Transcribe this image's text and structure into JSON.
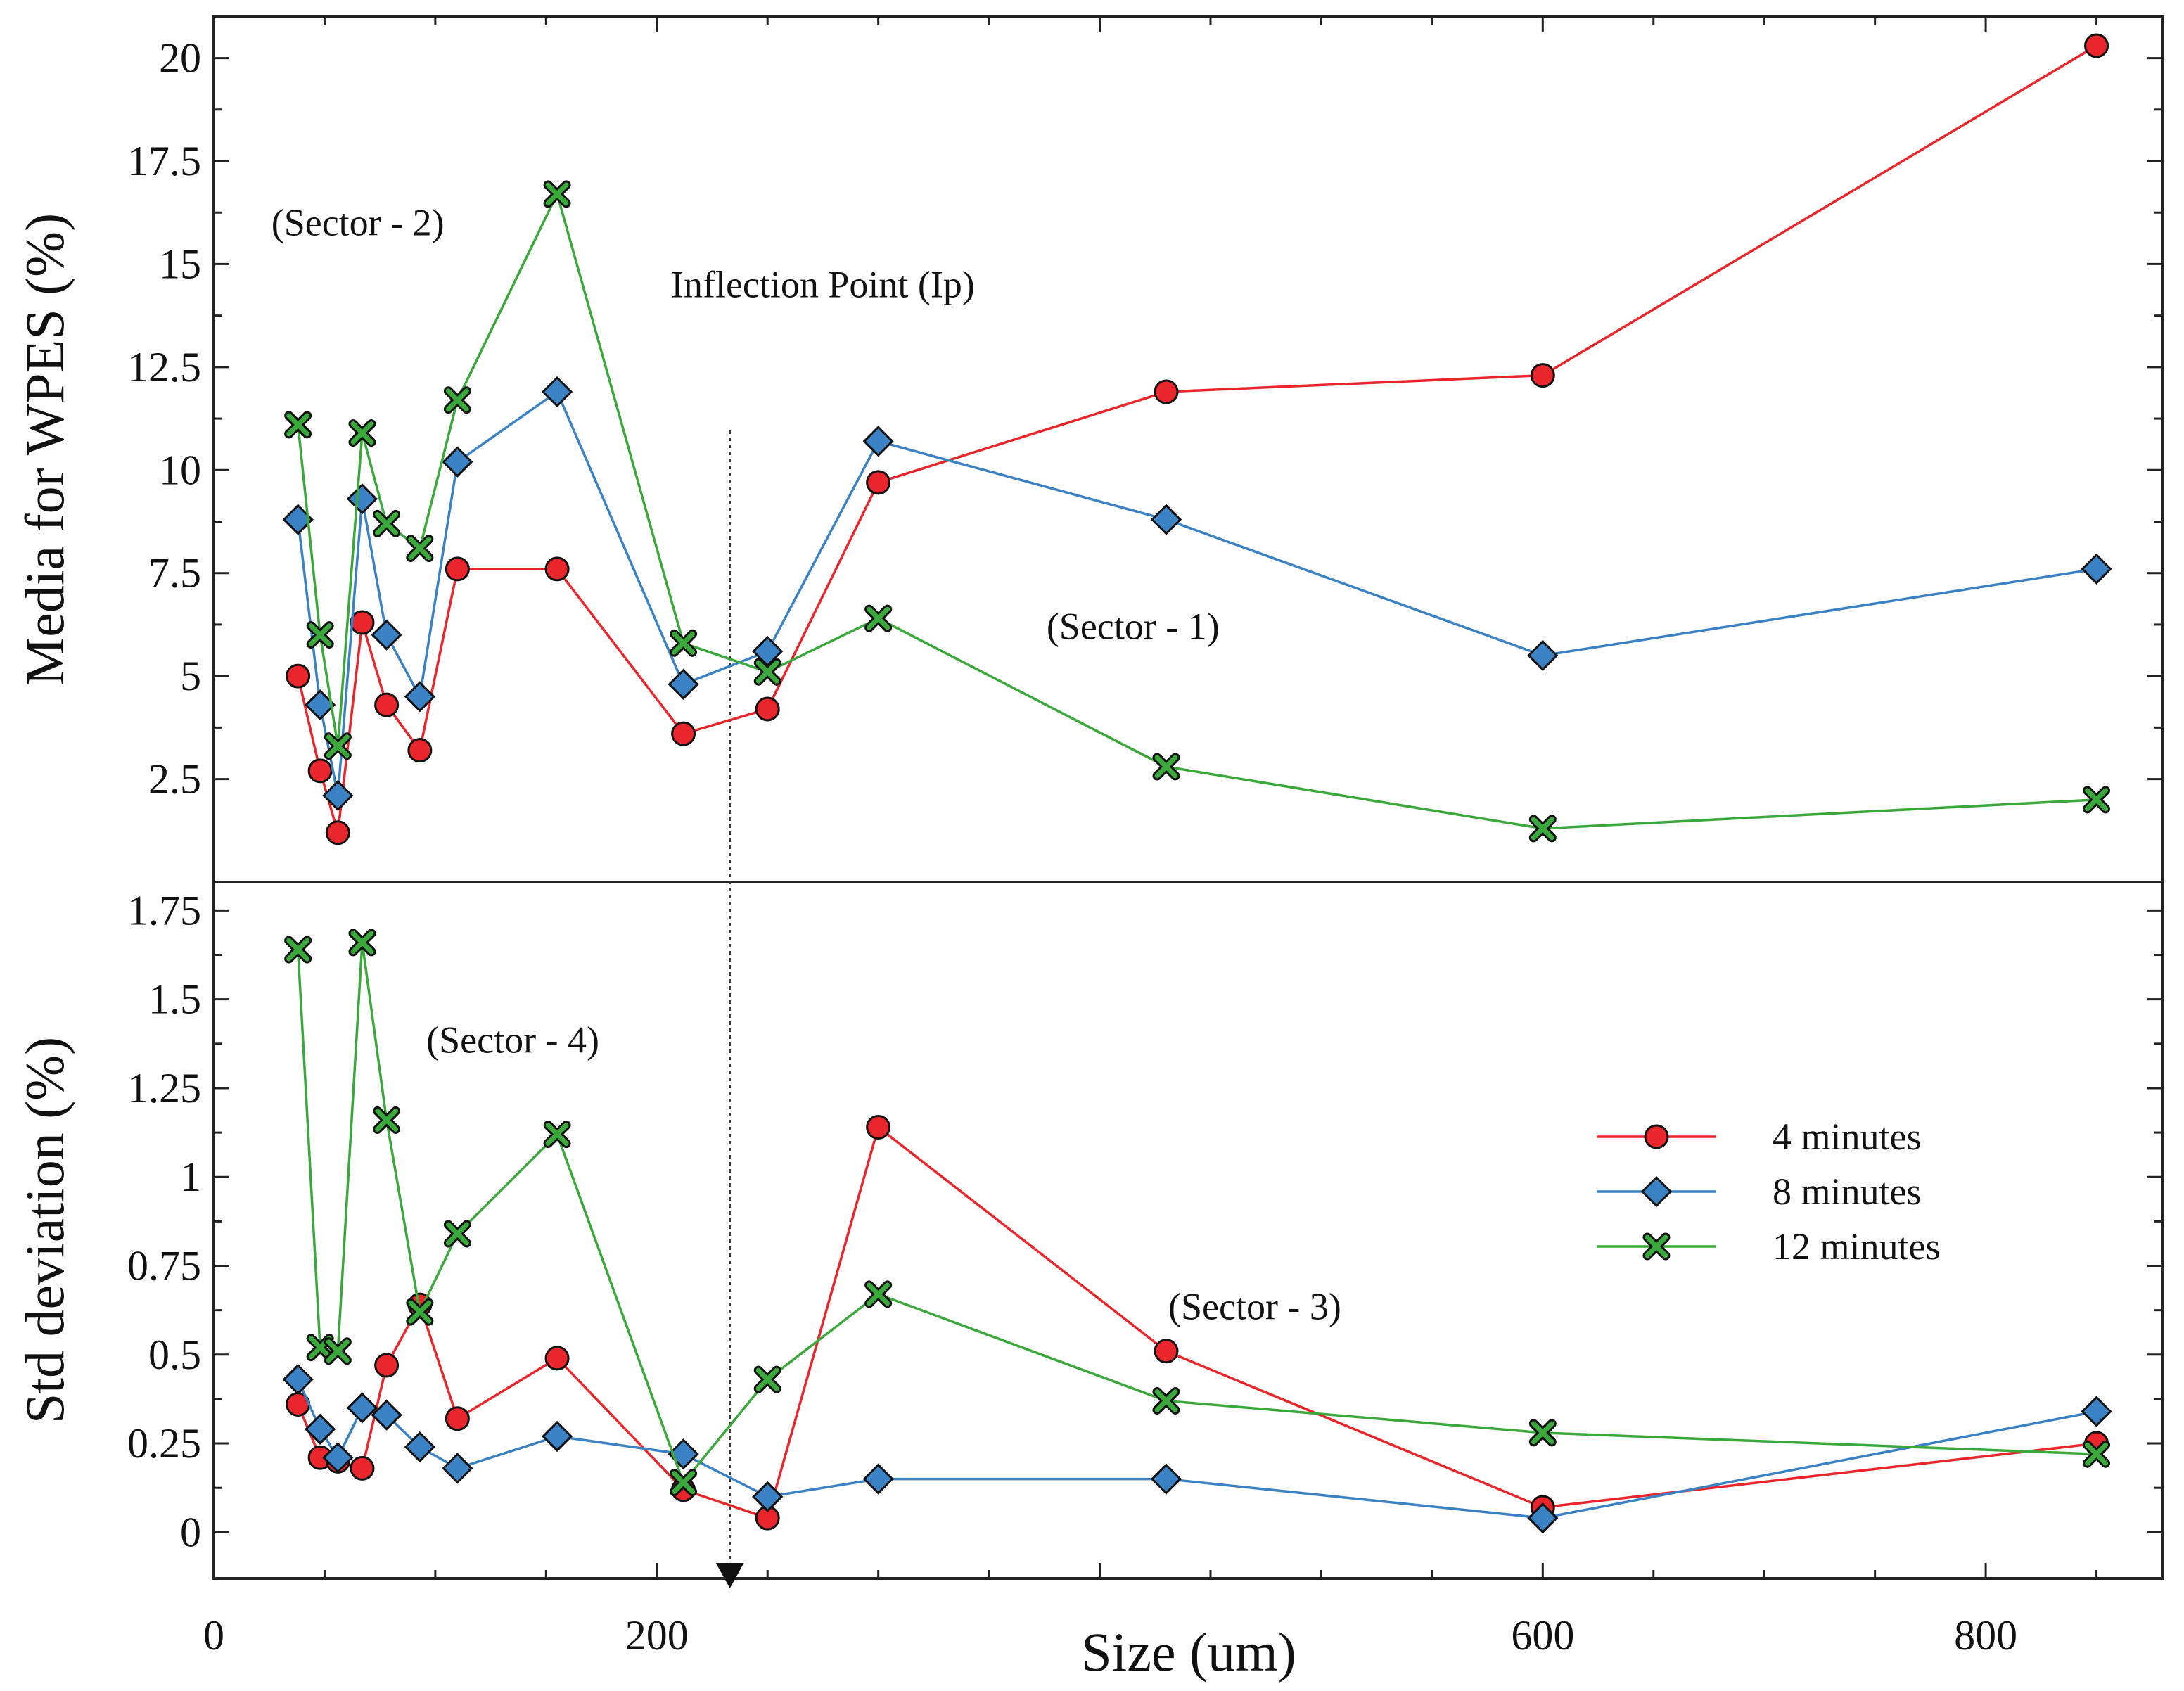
{
  "chart_data": {
    "type": "line",
    "xlabel": "Size (um)",
    "xlim": [
      0,
      880
    ],
    "xticks": [
      0,
      200,
      600,
      800
    ],
    "x": [
      38,
      48,
      56,
      67,
      78,
      93,
      110,
      155,
      212,
      250,
      300,
      430,
      600,
      850
    ],
    "colors": {
      "4 minutes": "#e8262b",
      "8 minutes": "#3b82c4",
      "12 minutes": "#3aa83a"
    },
    "legend": [
      "4 minutes",
      "8 minutes",
      "12 minutes"
    ],
    "inflection_x": 233,
    "panels": [
      {
        "name": "top",
        "ylabel": "Media for WPES (%)",
        "ylim": [
          0,
          21
        ],
        "yticks": [
          2.5,
          5,
          7.5,
          10,
          12.5,
          15,
          17.5,
          20
        ],
        "ytick_labels": [
          "2.5",
          "5",
          "7.5",
          "10",
          "12.5",
          "15",
          "17.5",
          "20"
        ],
        "series": [
          {
            "name": "4 minutes",
            "marker": "circle",
            "values": [
              5.0,
              2.7,
              1.2,
              6.3,
              4.3,
              3.2,
              7.6,
              7.6,
              3.6,
              4.2,
              9.7,
              11.9,
              12.3,
              20.3
            ]
          },
          {
            "name": "8 minutes",
            "marker": "diamond",
            "values": [
              8.8,
              4.3,
              2.1,
              9.3,
              6.0,
              4.5,
              10.2,
              11.9,
              4.8,
              5.6,
              10.7,
              8.8,
              5.5,
              7.6
            ]
          },
          {
            "name": "12 minutes",
            "marker": "x",
            "values": [
              11.1,
              6.0,
              3.3,
              10.9,
              8.7,
              8.1,
              11.7,
              16.7,
              5.8,
              5.1,
              6.4,
              2.8,
              1.3,
              2.0
            ]
          }
        ],
        "annotations": [
          {
            "text": "(Sector - 2)",
            "x": 65,
            "y": 15.7
          },
          {
            "text": "Inflection Point (Ip)",
            "x": 275,
            "y": 14.2
          },
          {
            "text": "(Sector - 1)",
            "x": 415,
            "y": 5.9
          }
        ]
      },
      {
        "name": "bottom",
        "ylabel": "Std deviation (%)",
        "ylim": [
          -0.13,
          1.83
        ],
        "yticks": [
          0,
          0.25,
          0.5,
          0.75,
          1,
          1.25,
          1.5,
          1.75
        ],
        "ytick_labels": [
          "0",
          "0.25",
          "0.5",
          "0.75",
          "1",
          "1.25",
          "1.5",
          "1.75"
        ],
        "series": [
          {
            "name": "4 minutes",
            "marker": "circle",
            "values": [
              0.36,
              0.21,
              0.2,
              0.18,
              0.47,
              0.64,
              0.32,
              0.49,
              0.12,
              0.04,
              1.14,
              0.51,
              0.07,
              0.25
            ]
          },
          {
            "name": "8 minutes",
            "marker": "diamond",
            "values": [
              0.43,
              0.29,
              0.21,
              0.35,
              0.33,
              0.24,
              0.18,
              0.27,
              0.22,
              0.1,
              0.15,
              0.15,
              0.04,
              0.34
            ]
          },
          {
            "name": "12 minutes",
            "marker": "x",
            "values": [
              1.64,
              0.52,
              0.51,
              1.66,
              1.16,
              0.62,
              0.84,
              1.12,
              0.14,
              0.43,
              0.67,
              0.37,
              0.28,
              0.22
            ]
          }
        ],
        "annotations": [
          {
            "text": "(Sector - 4)",
            "x": 135,
            "y": 1.35
          },
          {
            "text": "(Sector - 3)",
            "x": 470,
            "y": 0.6
          }
        ]
      }
    ]
  }
}
